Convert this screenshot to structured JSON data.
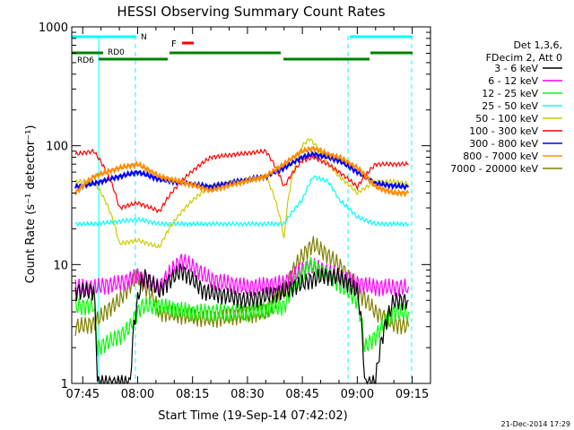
{
  "chart_data": {
    "type": "line",
    "title": "HESSI Observing Summary Count Rates",
    "xlabel": "Start Time (19-Sep-14 07:42:02)",
    "ylabel": "Count Rate (s⁻¹ detector⁻¹)",
    "yscale": "log",
    "ylim": [
      1,
      1000
    ],
    "xlim_minutes_after_0742": [
      0,
      98
    ],
    "x_tick_labels": [
      "07:45",
      "08:00",
      "08:15",
      "08:30",
      "08:45",
      "09:00",
      "09:15"
    ],
    "y_tick_labels": [
      "1",
      "10",
      "100",
      "1000"
    ],
    "legend": {
      "position": "right",
      "header": [
        "Det 1,3,6,",
        "FDecim 2, Att 0"
      ]
    },
    "flags": [
      {
        "label": "N",
        "color": "#00ffff"
      },
      {
        "label": "F",
        "color": "#ff0000"
      },
      {
        "label": "RD0",
        "color": "#008000"
      },
      {
        "label": "RD6",
        "color": "#008000"
      }
    ],
    "series": [
      {
        "name": "3 - 6 keV",
        "color": "#000000",
        "x": [
          "07:43",
          "07:48",
          "07:49",
          "07:55",
          "07:58",
          "08:01",
          "08:02",
          "08:06",
          "08:12",
          "08:18",
          "08:30",
          "08:40",
          "08:45",
          "08:50",
          "08:55",
          "09:00",
          "09:02",
          "09:05",
          "09:10",
          "09:14"
        ],
        "y": [
          6.0,
          6.0,
          1.0,
          1.0,
          1.0,
          7.0,
          8.0,
          6.0,
          9.0,
          6.0,
          5.0,
          6.0,
          7.0,
          8.0,
          8.0,
          6.0,
          1.0,
          1.0,
          5.0,
          5.0
        ]
      },
      {
        "name": "6 - 12 keV",
        "color": "#ff00ff",
        "x": [
          "07:43",
          "07:48",
          "07:55",
          "08:00",
          "08:06",
          "08:12",
          "08:20",
          "08:30",
          "08:40",
          "08:47",
          "08:55",
          "09:00",
          "09:05",
          "09:10",
          "09:14"
        ],
        "y": [
          6.5,
          6.5,
          7.0,
          8.0,
          6.5,
          11.0,
          7.5,
          6.5,
          7.0,
          10.0,
          8.0,
          7.0,
          6.5,
          6.5,
          6.5
        ]
      },
      {
        "name": "12 - 25 keV",
        "color": "#00ff00",
        "x": [
          "07:43",
          "07:48",
          "07:49",
          "07:55",
          "07:58",
          "08:01",
          "08:06",
          "08:15",
          "08:30",
          "08:40",
          "08:47",
          "08:55",
          "09:00",
          "09:02",
          "09:05",
          "09:10",
          "09:14"
        ],
        "y": [
          4.5,
          4.5,
          2.0,
          2.5,
          3.0,
          4.5,
          4.5,
          4.0,
          4.0,
          4.5,
          10.0,
          7.0,
          5.0,
          2.0,
          2.5,
          4.0,
          4.0
        ]
      },
      {
        "name": "25 - 50 keV",
        "color": "#00ffff",
        "x": [
          "07:43",
          "07:48",
          "07:55",
          "08:00",
          "08:06",
          "08:20",
          "08:35",
          "08:40",
          "08:45",
          "08:48",
          "08:52",
          "08:55",
          "09:00",
          "09:05",
          "09:10",
          "09:14"
        ],
        "y": [
          22,
          22,
          23,
          24,
          22,
          22,
          22,
          22,
          35,
          55,
          50,
          35,
          25,
          22,
          22,
          22
        ]
      },
      {
        "name": "50 - 100 keV",
        "color": "#cccc00",
        "x": [
          "07:43",
          "07:48",
          "07:55",
          "08:00",
          "08:06",
          "08:20",
          "08:35",
          "08:40",
          "08:45",
          "08:47",
          "08:52",
          "08:55",
          "09:00",
          "09:05",
          "09:10",
          "09:14"
        ],
        "y": [
          50,
          50,
          15,
          16,
          14,
          46,
          55,
          16,
          100,
          115,
          70,
          55,
          40,
          50,
          50,
          48
        ]
      },
      {
        "name": "100 - 300 keV",
        "color": "#ff0000",
        "x": [
          "07:43",
          "07:48",
          "07:55",
          "08:00",
          "08:06",
          "08:20",
          "08:35",
          "08:40",
          "08:45",
          "08:48",
          "08:52",
          "08:55",
          "09:00",
          "09:05",
          "09:10",
          "09:14"
        ],
        "y": [
          85,
          90,
          30,
          33,
          28,
          80,
          90,
          45,
          75,
          80,
          70,
          60,
          45,
          70,
          70,
          70
        ]
      },
      {
        "name": "300 - 800 keV",
        "color": "#0000ff",
        "x": [
          "07:43",
          "07:48",
          "07:55",
          "08:00",
          "08:06",
          "08:20",
          "08:35",
          "08:40",
          "08:45",
          "08:48",
          "08:52",
          "08:55",
          "09:00",
          "09:05",
          "09:10",
          "09:14"
        ],
        "y": [
          45,
          48,
          55,
          60,
          52,
          45,
          55,
          65,
          80,
          85,
          80,
          75,
          60,
          48,
          46,
          45
        ]
      },
      {
        "name": "800 - 7000 keV",
        "color": "#ff8c00",
        "x": [
          "07:43",
          "07:48",
          "07:55",
          "08:00",
          "08:06",
          "08:20",
          "08:35",
          "08:40",
          "08:45",
          "08:48",
          "08:52",
          "08:55",
          "09:00",
          "09:05",
          "09:10",
          "09:14"
        ],
        "y": [
          40,
          55,
          65,
          70,
          55,
          42,
          55,
          70,
          90,
          95,
          85,
          80,
          65,
          45,
          40,
          40
        ]
      },
      {
        "name": "7000 - 20000 keV",
        "color": "#808000",
        "x": [
          "07:43",
          "07:48",
          "07:55",
          "08:00",
          "08:06",
          "08:20",
          "08:35",
          "08:40",
          "08:45",
          "08:48",
          "08:52",
          "08:55",
          "09:00",
          "09:05",
          "09:10",
          "09:14"
        ],
        "y": [
          3.0,
          3.2,
          5.0,
          8.0,
          4.0,
          3.5,
          4.0,
          6.0,
          12.0,
          15.0,
          12.0,
          10.0,
          6.0,
          4.0,
          3.2,
          3.0
        ]
      }
    ]
  },
  "footer": {
    "date": "21-Dec-2014 17:29"
  }
}
